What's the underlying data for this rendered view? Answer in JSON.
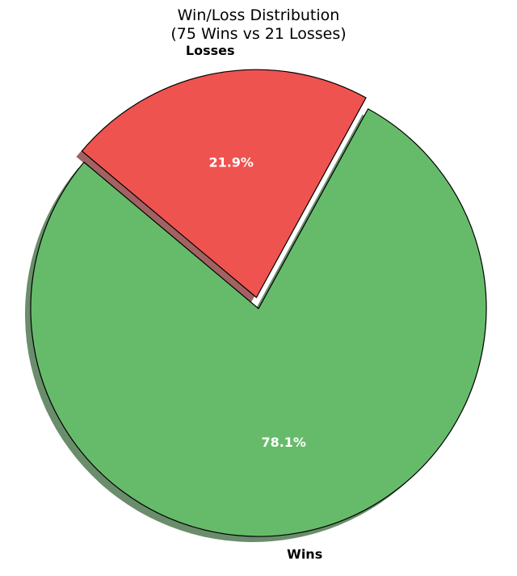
{
  "chart_data": {
    "type": "pie",
    "title": "Win/Loss Distribution",
    "subtitle": "(75 Wins vs 21 Losses)",
    "categories": [
      "Wins",
      "Losses"
    ],
    "values": [
      75,
      21
    ],
    "percent_labels": [
      "78.1%",
      "21.9%"
    ],
    "colors": [
      "#66bb6a",
      "#ef5350"
    ],
    "shadow": true,
    "exploded": [
      "Losses"
    ],
    "start_angle_deg": 140,
    "direction": "counterclockwise"
  }
}
